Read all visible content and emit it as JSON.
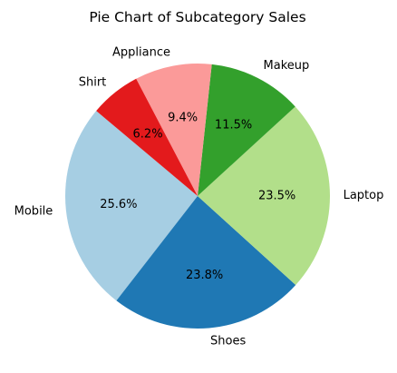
{
  "chart_data": {
    "type": "pie",
    "title": "Pie Chart of Subcategory Sales",
    "categories": [
      "Mobile",
      "Shoes",
      "Laptop",
      "Makeup",
      "Appliance",
      "Shirt"
    ],
    "values": [
      25.6,
      23.8,
      23.5,
      11.5,
      9.4,
      6.2
    ],
    "percent_labels": [
      "25.6%",
      "23.8%",
      "23.5%",
      "11.5%",
      "9.4%",
      "6.2%"
    ],
    "colors": [
      "#a6cee3",
      "#1f78b4",
      "#b2df8a",
      "#33a02c",
      "#fb9a99",
      "#e31a1c"
    ],
    "start_angle_deg": 140,
    "direction": "counterclockwise",
    "legend": "none"
  }
}
